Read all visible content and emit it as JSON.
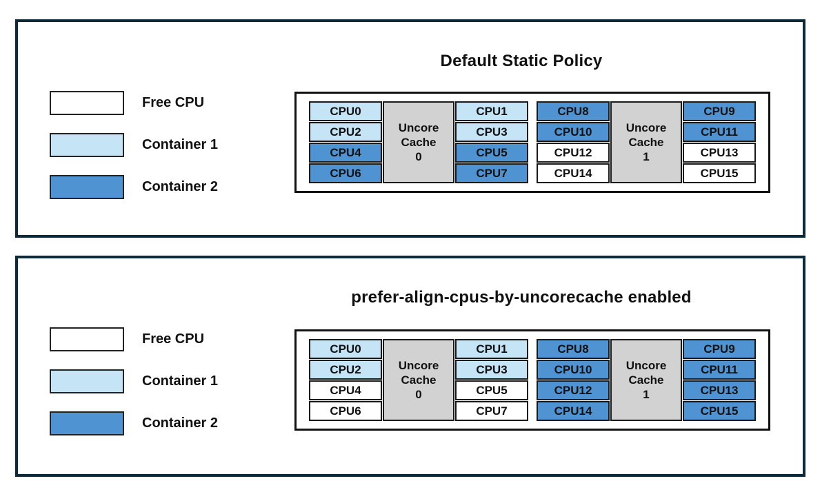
{
  "colors": {
    "free_cpu": "#ffffff",
    "container1": "#c5e4f5",
    "container2": "#4f93d2",
    "uncore_cache_bg": "#d2d2d2",
    "panel_border": "#0e2a3a",
    "cell_border": "#1a1a1a"
  },
  "legend": {
    "items": [
      {
        "label": "Free CPU",
        "fill": "free"
      },
      {
        "label": "Container 1",
        "fill": "container1"
      },
      {
        "label": "Container 2",
        "fill": "container2"
      }
    ]
  },
  "panels": [
    {
      "title": "Default Static Policy",
      "blocks": [
        {
          "cache_label": "Uncore\nCache\n0",
          "left_cpus": [
            {
              "label": "CPU0",
              "fill": "container1"
            },
            {
              "label": "CPU2",
              "fill": "container1"
            },
            {
              "label": "CPU4",
              "fill": "container2"
            },
            {
              "label": "CPU6",
              "fill": "container2"
            }
          ],
          "right_cpus": [
            {
              "label": "CPU1",
              "fill": "container1"
            },
            {
              "label": "CPU3",
              "fill": "container1"
            },
            {
              "label": "CPU5",
              "fill": "container2"
            },
            {
              "label": "CPU7",
              "fill": "container2"
            }
          ]
        },
        {
          "cache_label": "Uncore\nCache\n1",
          "left_cpus": [
            {
              "label": "CPU8",
              "fill": "container2"
            },
            {
              "label": "CPU10",
              "fill": "container2"
            },
            {
              "label": "CPU12",
              "fill": "free"
            },
            {
              "label": "CPU14",
              "fill": "free"
            }
          ],
          "right_cpus": [
            {
              "label": "CPU9",
              "fill": "container2"
            },
            {
              "label": "CPU11",
              "fill": "container2"
            },
            {
              "label": "CPU13",
              "fill": "free"
            },
            {
              "label": "CPU15",
              "fill": "free"
            }
          ]
        }
      ]
    },
    {
      "title": "prefer-align-cpus-by-uncorecache enabled",
      "blocks": [
        {
          "cache_label": "Uncore\nCache\n0",
          "left_cpus": [
            {
              "label": "CPU0",
              "fill": "container1"
            },
            {
              "label": "CPU2",
              "fill": "container1"
            },
            {
              "label": "CPU4",
              "fill": "free"
            },
            {
              "label": "CPU6",
              "fill": "free"
            }
          ],
          "right_cpus": [
            {
              "label": "CPU1",
              "fill": "container1"
            },
            {
              "label": "CPU3",
              "fill": "container1"
            },
            {
              "label": "CPU5",
              "fill": "free"
            },
            {
              "label": "CPU7",
              "fill": "free"
            }
          ]
        },
        {
          "cache_label": "Uncore\nCache\n1",
          "left_cpus": [
            {
              "label": "CPU8",
              "fill": "container2"
            },
            {
              "label": "CPU10",
              "fill": "container2"
            },
            {
              "label": "CPU12",
              "fill": "container2"
            },
            {
              "label": "CPU14",
              "fill": "container2"
            }
          ],
          "right_cpus": [
            {
              "label": "CPU9",
              "fill": "container2"
            },
            {
              "label": "CPU11",
              "fill": "container2"
            },
            {
              "label": "CPU13",
              "fill": "container2"
            },
            {
              "label": "CPU15",
              "fill": "container2"
            }
          ]
        }
      ]
    }
  ]
}
